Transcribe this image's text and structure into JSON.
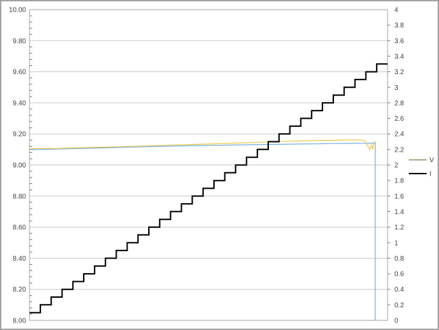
{
  "page": {
    "background": "#ffffff",
    "frame_border_color": "#a3a3a3"
  },
  "chart_data": {
    "type": "line",
    "title": "",
    "xlabel": "",
    "ylabel_left": "",
    "ylabel_right": "",
    "grid": "horizontal-major",
    "colors": {
      "gridline": "#c9c9c9",
      "plot_border": "#a6a6a6",
      "tick": "#7a7a7a",
      "label_text": "#404040"
    },
    "left_axis": {
      "min": 8.0,
      "max": 10.0,
      "label_step": 0.2,
      "minor_tick_step": 0.04,
      "labels": [
        "10.00",
        "9.80",
        "9.60",
        "9.40",
        "9.20",
        "9.00",
        "8.80",
        "8.60",
        "8.40",
        "8.20",
        "8.00"
      ]
    },
    "right_axis": {
      "min": 0,
      "max": 4,
      "label_step": 0.2,
      "labels": [
        "4",
        "3.8",
        "3.6",
        "3.4",
        "3.2",
        "3",
        "2.8",
        "2.6",
        "2.4",
        "2.2",
        "2",
        "1.8",
        "1.6",
        "1.4",
        "1.2",
        "1",
        "0.8",
        "0.6",
        "0.4",
        "0.2",
        "0"
      ]
    },
    "legend": {
      "position": "right-outside-middle",
      "items": [
        {
          "label": "V",
          "color": "#8f8f62",
          "width": 1.5
        },
        {
          "label": "I",
          "color": "#000000",
          "width": 2
        }
      ]
    },
    "series": [
      {
        "name": "V-blue",
        "legend_label": "V",
        "axis": "left",
        "color": "#76aedb",
        "width": 1.2,
        "type": "line",
        "points": [
          [
            0.0,
            9.099
          ],
          [
            0.05,
            9.101
          ],
          [
            0.1,
            9.104
          ],
          [
            0.15,
            9.107
          ],
          [
            0.2,
            9.11
          ],
          [
            0.25,
            9.113
          ],
          [
            0.3,
            9.116
          ],
          [
            0.35,
            9.119
          ],
          [
            0.4,
            9.122
          ],
          [
            0.45,
            9.124
          ],
          [
            0.5,
            9.126
          ],
          [
            0.55,
            9.128
          ],
          [
            0.6,
            9.13
          ],
          [
            0.65,
            9.132
          ],
          [
            0.7,
            9.133
          ],
          [
            0.75,
            9.135
          ],
          [
            0.8,
            9.136
          ],
          [
            0.85,
            9.138
          ],
          [
            0.9,
            9.139
          ],
          [
            0.93,
            9.14
          ],
          [
            0.955,
            9.141
          ],
          [
            0.9655,
            9.141
          ],
          [
            0.9655,
            8.0
          ]
        ]
      },
      {
        "name": "V-yellow",
        "legend_label": "V",
        "axis": "left",
        "color": "#e9cb4e",
        "width": 1.2,
        "type": "line",
        "points": [
          [
            0.0,
            9.104
          ],
          [
            0.02,
            9.106
          ],
          [
            0.05,
            9.107
          ],
          [
            0.08,
            9.106
          ],
          [
            0.1,
            9.109
          ],
          [
            0.15,
            9.112
          ],
          [
            0.2,
            9.115
          ],
          [
            0.25,
            9.118
          ],
          [
            0.3,
            9.121
          ],
          [
            0.35,
            9.125
          ],
          [
            0.4,
            9.129
          ],
          [
            0.45,
            9.132
          ],
          [
            0.5,
            9.135
          ],
          [
            0.55,
            9.139
          ],
          [
            0.6,
            9.143
          ],
          [
            0.65,
            9.147
          ],
          [
            0.7,
            9.151
          ],
          [
            0.75,
            9.154
          ],
          [
            0.8,
            9.157
          ],
          [
            0.85,
            9.159
          ],
          [
            0.88,
            9.161
          ],
          [
            0.9,
            9.162
          ],
          [
            0.92,
            9.162
          ],
          [
            0.935,
            9.158
          ],
          [
            0.945,
            9.12
          ],
          [
            0.95,
            9.098
          ],
          [
            0.955,
            9.13
          ],
          [
            0.958,
            9.102
          ],
          [
            0.962,
            9.145
          ],
          [
            0.966,
            9.152
          ],
          [
            0.968,
            9.15
          ]
        ]
      },
      {
        "name": "I",
        "legend_label": "I",
        "axis": "right",
        "color": "#000000",
        "width": 2,
        "type": "step",
        "step_values": [
          0.1,
          0.2,
          0.3,
          0.4,
          0.5,
          0.6,
          0.7,
          0.8,
          0.9,
          1.0,
          1.1,
          1.2,
          1.3,
          1.4,
          1.5,
          1.6,
          1.7,
          1.8,
          1.9,
          2.0,
          2.1,
          2.2,
          2.3,
          2.4,
          2.5,
          2.6,
          2.7,
          2.8,
          2.9,
          3.0,
          3.1,
          3.2,
          3.3
        ],
        "last_run_extends_to_right_edge": true
      }
    ]
  }
}
